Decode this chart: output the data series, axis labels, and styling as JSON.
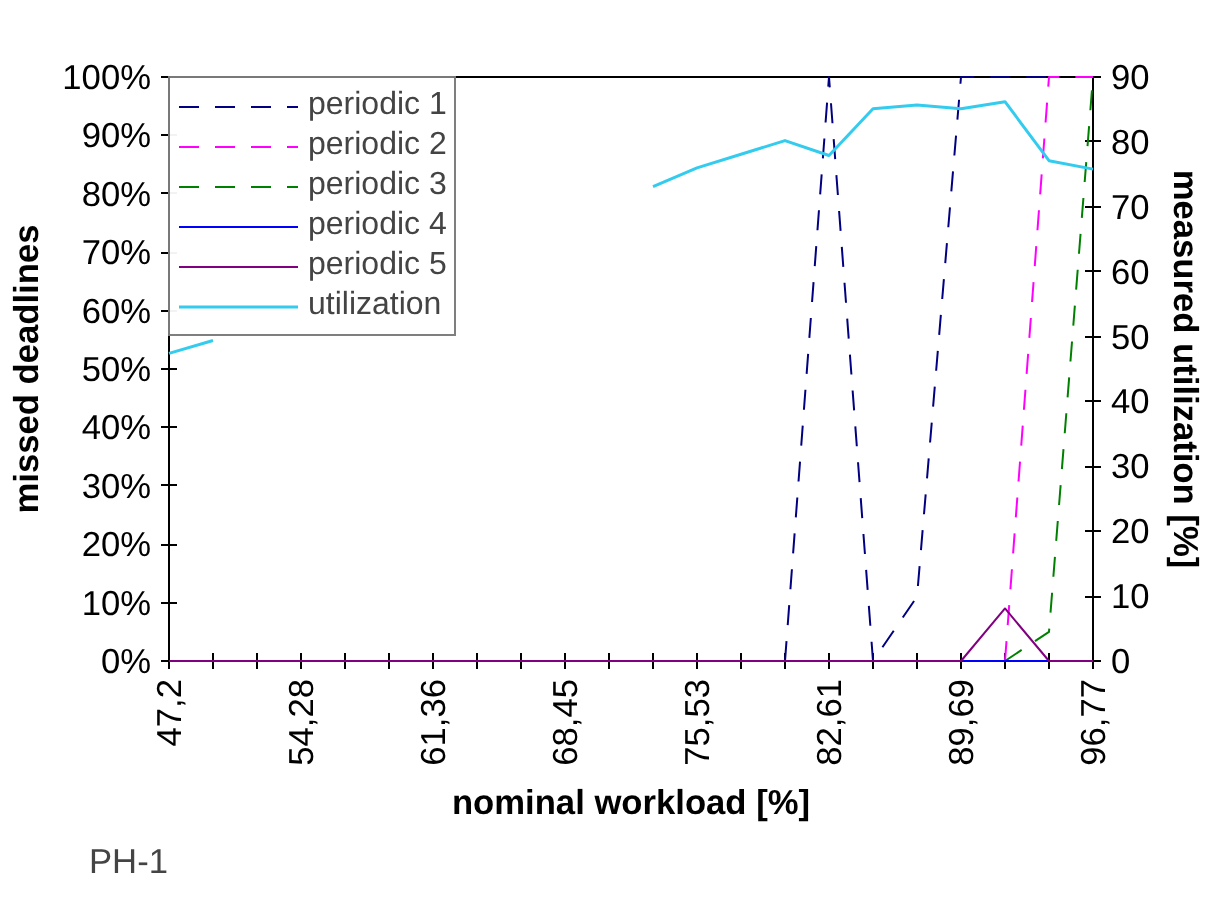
{
  "chart_data": {
    "type": "line",
    "xlabel": "nominal workload [%]",
    "ylabel": "missed deadlines",
    "y2label": "measured utilization [%]",
    "annotations": [
      "PH-1"
    ],
    "categories": [
      "47,2",
      null,
      null,
      "54,28",
      null,
      null,
      "61,36",
      null,
      null,
      "68,45",
      null,
      null,
      "75,53",
      null,
      null,
      "82,61",
      null,
      null,
      "89,69",
      null,
      null,
      "96,77"
    ],
    "ylim": [
      0,
      100
    ],
    "yticks": [
      {
        "value": 0,
        "label": "0%"
      },
      {
        "value": 10,
        "label": "10%"
      },
      {
        "value": 20,
        "label": "20%"
      },
      {
        "value": 30,
        "label": "30%"
      },
      {
        "value": 40,
        "label": "40%"
      },
      {
        "value": 50,
        "label": "50%"
      },
      {
        "value": 60,
        "label": "60%"
      },
      {
        "value": 70,
        "label": "70%"
      },
      {
        "value": 80,
        "label": "80%"
      },
      {
        "value": 90,
        "label": "90%"
      },
      {
        "value": 100,
        "label": "100%"
      }
    ],
    "y2lim": [
      0,
      90
    ],
    "y2ticks": [
      0,
      10,
      20,
      30,
      40,
      50,
      60,
      70,
      80,
      90
    ],
    "grid": false,
    "legend": "top left",
    "marker": "none",
    "series": [
      {
        "name": "periodic 1",
        "color": "#000080",
        "line_style": "dashed",
        "values": [
          null,
          null,
          null,
          null,
          null,
          null,
          null,
          null,
          null,
          null,
          null,
          null,
          null,
          null,
          0,
          100,
          0,
          11,
          100,
          100,
          100,
          null
        ]
      },
      {
        "name": "periodic 2",
        "color": "#ff00ff",
        "line_style": "dashed",
        "values": [
          null,
          null,
          null,
          null,
          null,
          null,
          null,
          null,
          null,
          null,
          null,
          null,
          null,
          null,
          null,
          null,
          null,
          null,
          null,
          0,
          100,
          100
        ]
      },
      {
        "name": "periodic 3",
        "color": "#008000",
        "line_style": "dashed",
        "values": [
          null,
          null,
          null,
          null,
          null,
          null,
          null,
          null,
          null,
          null,
          null,
          null,
          null,
          null,
          null,
          null,
          null,
          null,
          null,
          0,
          5,
          100
        ]
      },
      {
        "name": "periodic 4",
        "color": "#0000ff",
        "line_style": "solid",
        "values": [
          null,
          null,
          null,
          null,
          null,
          null,
          null,
          null,
          null,
          null,
          null,
          null,
          null,
          null,
          null,
          null,
          null,
          null,
          0,
          0,
          0,
          null
        ]
      },
      {
        "name": "periodic 5",
        "color": "#800080",
        "line_style": "solid",
        "values": [
          0,
          0,
          0,
          0,
          0,
          0,
          0,
          0,
          0,
          0,
          0,
          0,
          0,
          0,
          0,
          0,
          0,
          0,
          0,
          9,
          0,
          0
        ]
      },
      {
        "name": "utilization",
        "color": "#33ccee",
        "line_style": "solid",
        "axis": "y2",
        "values": [
          47.4,
          49.4,
          null,
          null,
          null,
          null,
          null,
          null,
          null,
          null,
          null,
          73.1,
          76.0,
          78.1,
          80.2,
          77.9,
          85.1,
          85.7,
          85.1,
          86.2,
          77.1,
          75.8
        ]
      }
    ]
  }
}
